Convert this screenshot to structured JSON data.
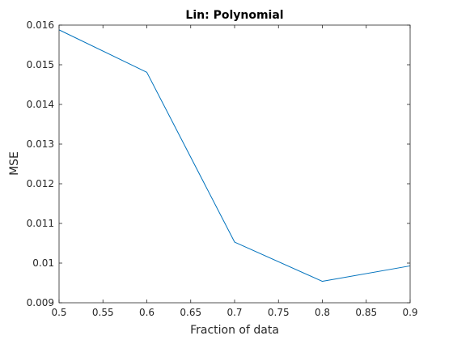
{
  "chart_data": {
    "type": "line",
    "title": "Lin: Polynomial",
    "xlabel": "Fraction of data",
    "ylabel": "MSE",
    "xlim": [
      0.5,
      0.9
    ],
    "ylim": [
      0.009,
      0.016
    ],
    "grid": false,
    "box": true,
    "x_ticks": [
      "0.5",
      "0.55",
      "0.6",
      "0.65",
      "0.7",
      "0.75",
      "0.8",
      "0.85",
      "0.9"
    ],
    "y_ticks": [
      "0.009",
      "0.01",
      "0.011",
      "0.012",
      "0.013",
      "0.014",
      "0.015",
      "0.016"
    ],
    "series": [
      {
        "color": "#0072BD",
        "x": [
          0.5,
          0.6,
          0.7,
          0.8,
          0.9
        ],
        "y": [
          0.01588,
          0.01481,
          0.01053,
          0.00954,
          0.00993
        ]
      }
    ]
  }
}
